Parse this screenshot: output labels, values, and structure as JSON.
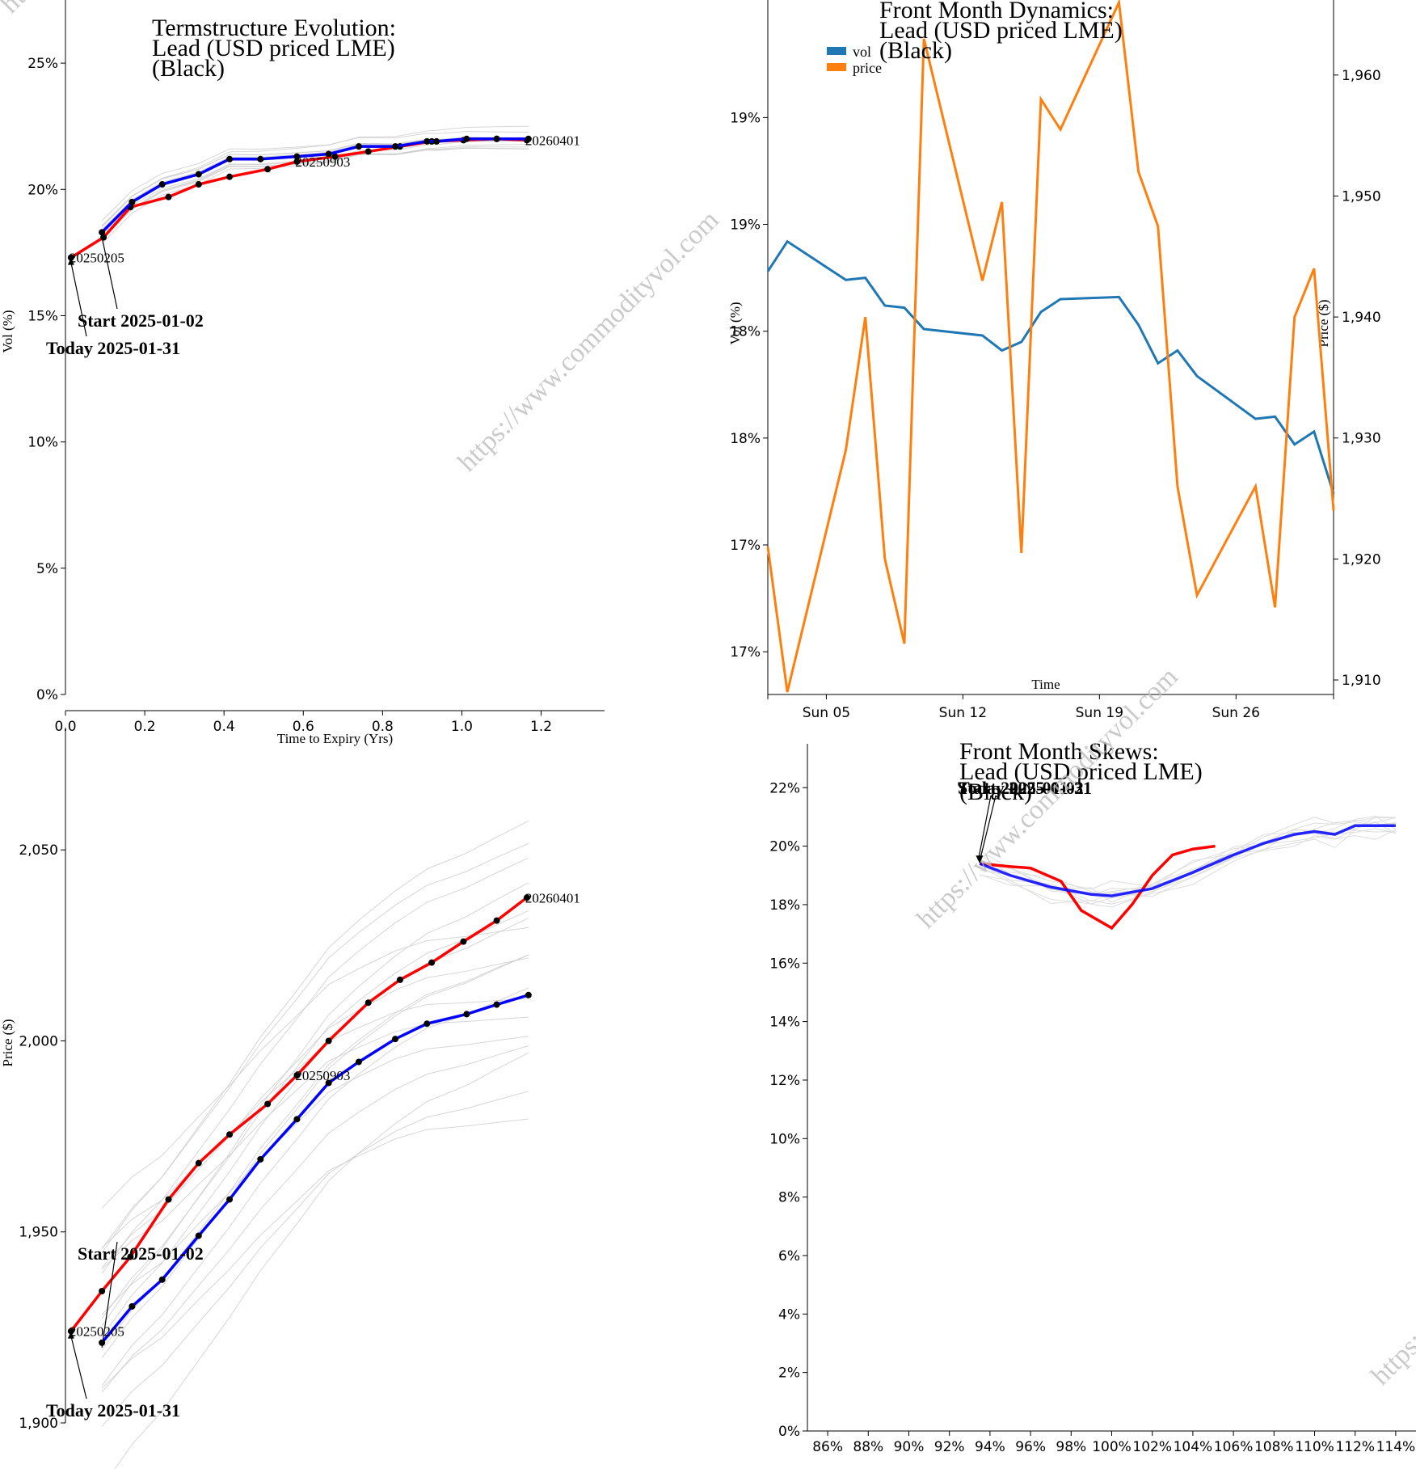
{
  "watermark": "https://www.commodityvol.com",
  "chart_data": [
    {
      "id": "termstructure-vol",
      "type": "line",
      "title": [
        "Termstructure Evolution:",
        "Lead (USD priced LME)",
        "(Black)"
      ],
      "xlabel": "Time to Expiry (Yrs)",
      "ylabel": "Vol (%)",
      "xlim": [
        0,
        1.36
      ],
      "ylim": [
        0,
        27.5
      ],
      "xticks": [
        0.0,
        0.2,
        0.4,
        0.6,
        0.8,
        1.0,
        1.2
      ],
      "xtick_labels": [
        "0.0",
        "0.2",
        "0.4",
        "0.6",
        "0.8",
        "1.0",
        "1.2"
      ],
      "yticks": [
        0,
        5,
        10,
        15,
        20,
        25
      ],
      "ytick_labels": [
        "0%",
        "5%",
        "10%",
        "15%",
        "20%",
        "25%"
      ],
      "series": [
        {
          "role": "today",
          "color": "#ff0000",
          "x": [
            0.014,
            0.096,
            0.164,
            0.26,
            0.336,
            0.414,
            0.51,
            0.584,
            0.68,
            0.764,
            0.844,
            0.924,
            1.004,
            1.088,
            1.164
          ],
          "y": [
            17.3,
            18.1,
            19.3,
            19.7,
            20.2,
            20.5,
            20.8,
            21.1,
            21.3,
            21.5,
            21.7,
            21.9,
            21.95,
            22.0,
            21.95
          ]
        },
        {
          "role": "start",
          "color": "#0000ff",
          "x": [
            0.092,
            0.168,
            0.244,
            0.336,
            0.414,
            0.492,
            0.584,
            0.664,
            0.74,
            0.832,
            0.912,
            0.936,
            1.012,
            1.088,
            1.168
          ],
          "y": [
            18.3,
            19.5,
            20.2,
            20.6,
            21.2,
            21.2,
            21.3,
            21.4,
            21.7,
            21.7,
            21.9,
            21.9,
            22.0,
            22.0,
            22.0
          ]
        }
      ],
      "annotations": [
        {
          "text": "Start 2025-01-02",
          "x": 0.092,
          "y": 18.3
        },
        {
          "text": "Today 2025-01-31",
          "x": 0.014,
          "y": 17.3
        }
      ],
      "point_labels": [
        {
          "text": "20250205",
          "x": 0.014,
          "y": 17.3
        },
        {
          "text": "20250903",
          "x": 0.584,
          "y": 21.1
        },
        {
          "text": "20260401",
          "x": 1.164,
          "y": 21.95
        }
      ]
    },
    {
      "id": "front-month-dynamics",
      "type": "line",
      "title": [
        "Front Month Dynamics:",
        "Lead (USD priced LME)",
        "(Black)"
      ],
      "xlabel": "Time",
      "ylabel": "Vol (%)",
      "y2label": "Price ($)",
      "legend": [
        "vol",
        "price"
      ],
      "legend_position": "top-left",
      "x_dates": [
        "2025-01-02",
        "2025-01-03",
        "2025-01-06",
        "2025-01-07",
        "2025-01-08",
        "2025-01-09",
        "2025-01-10",
        "2025-01-13",
        "2025-01-14",
        "2025-01-15",
        "2025-01-16",
        "2025-01-17",
        "2025-01-20",
        "2025-01-21",
        "2025-01-22",
        "2025-01-23",
        "2025-01-24",
        "2025-01-27",
        "2025-01-28",
        "2025-01-29",
        "2025-01-30",
        "2025-01-31"
      ],
      "xlim": [
        "2025-01-02",
        "2025-01-31"
      ],
      "xticks": [
        "2025-01-05",
        "2025-01-12",
        "2025-01-19",
        "2025-01-26"
      ],
      "xtick_labels": [
        "Sun 05",
        "Sun 12",
        "Sun 19",
        "Sun 26"
      ],
      "ylim": [
        16.7,
        19.95
      ],
      "yticks": [
        16.9,
        17.4,
        17.9,
        18.4,
        18.9,
        19.4
      ],
      "ytick_labels": [
        "17%",
        "17%",
        "18%",
        "18%",
        "19%",
        "19%"
      ],
      "y2lim": [
        1908.8,
        1966.2
      ],
      "y2ticks": [
        1910,
        1920,
        1930,
        1940,
        1950,
        1960
      ],
      "y2tick_labels": [
        "1,910",
        "1,920",
        "1,930",
        "1,940",
        "1,950",
        "1,960"
      ],
      "series": [
        {
          "name": "vol",
          "color": "#1f77b4",
          "axis": "left",
          "y": [
            18.68,
            18.82,
            18.64,
            18.65,
            18.52,
            18.51,
            18.41,
            18.38,
            18.31,
            18.35,
            18.49,
            18.55,
            18.56,
            18.43,
            18.25,
            18.31,
            18.19,
            17.99,
            18.0,
            17.87,
            17.93,
            17.64
          ]
        },
        {
          "name": "price",
          "color": "#ff7f0e",
          "axis": "left-secondary",
          "y": [
            1921.0,
            1909.0,
            1929.0,
            1940.0,
            1920.0,
            1913.0,
            1963.0,
            1943.0,
            1949.5,
            1920.5,
            1958.0,
            1955.5,
            1966.0,
            1952.0,
            1947.5,
            1926.0,
            1917.0,
            1926.0,
            1916.0,
            1940.0,
            1944.0,
            1924.0
          ]
        }
      ]
    },
    {
      "id": "termstructure-price",
      "type": "line",
      "title": [],
      "xlabel": "",
      "ylabel": "Price ($)",
      "xlim": [
        0,
        1.36
      ],
      "ylim": [
        1900,
        2082
      ],
      "yticks": [
        1900,
        1950,
        2000,
        2050
      ],
      "ytick_labels": [
        "1,900",
        "1,950",
        "2,000",
        "2,050"
      ],
      "series": [
        {
          "role": "today",
          "color": "#ff0000",
          "x": [
            0.014,
            0.092,
            0.164,
            0.26,
            0.336,
            0.414,
            0.51,
            0.584,
            0.664,
            0.764,
            0.844,
            0.924,
            1.004,
            1.088,
            1.164
          ],
          "y": [
            1924,
            1934.5,
            1943.5,
            1958.5,
            1968,
            1975.5,
            1983.5,
            1991,
            2000,
            2010,
            2016,
            2020.5,
            2026,
            2031.5,
            2037.5
          ]
        },
        {
          "role": "start",
          "color": "#0000ff",
          "x": [
            0.092,
            0.168,
            0.244,
            0.336,
            0.414,
            0.492,
            0.584,
            0.664,
            0.74,
            0.832,
            0.912,
            1.012,
            1.088,
            1.168
          ],
          "y": [
            1921,
            1930.5,
            1937.5,
            1949,
            1958.5,
            1969,
            1979.5,
            1989,
            1994.5,
            2000.5,
            2004.5,
            2007,
            2009.5,
            2012
          ]
        }
      ],
      "annotations": [
        {
          "text": "Start 2025-01-02",
          "x": 0.092,
          "y": 1921
        },
        {
          "text": "Today 2025-01-31",
          "x": 0.014,
          "y": 1924
        }
      ],
      "point_labels": [
        {
          "text": "20250205",
          "x": 0.014,
          "y": 1924
        },
        {
          "text": "20250903",
          "x": 0.584,
          "y": 1991
        },
        {
          "text": "20260401",
          "x": 1.164,
          "y": 2037.5
        }
      ]
    },
    {
      "id": "front-month-skews",
      "type": "line",
      "title": [
        "Front Month Skews:",
        "Lead (USD priced LME)",
        "(Black)"
      ],
      "xlabel": "",
      "ylabel": "",
      "xlim": [
        85.0,
        115.0
      ],
      "ylim": [
        0,
        23.5
      ],
      "xticks": [
        86,
        88,
        90,
        92,
        94,
        96,
        98,
        100,
        102,
        104,
        106,
        108,
        110,
        112,
        114
      ],
      "xtick_labels": [
        "86%",
        "88%",
        "90%",
        "92%",
        "94%",
        "96%",
        "98%",
        "100%",
        "102%",
        "104%",
        "106%",
        "108%",
        "110%",
        "112%",
        "114%"
      ],
      "yticks": [
        0,
        2,
        4,
        6,
        8,
        10,
        12,
        14,
        16,
        18,
        20,
        22
      ],
      "ytick_labels": [
        "0%",
        "2%",
        "4%",
        "6%",
        "8%",
        "10%",
        "12%",
        "14%",
        "16%",
        "18%",
        "20%",
        "22%"
      ],
      "series": [
        {
          "role": "today",
          "color": "#ff0000",
          "x": [
            93.5,
            95.0,
            96.0,
            97.5,
            98.5,
            100.0,
            101.0,
            102.0,
            103.0,
            104.0,
            105.1
          ],
          "y": [
            19.4,
            19.3,
            19.25,
            18.8,
            17.8,
            17.2,
            18.0,
            19.0,
            19.7,
            19.9,
            20.0
          ]
        },
        {
          "role": "start",
          "color": "#0000ff",
          "x": [
            93.5,
            95.0,
            97.0,
            99.0,
            100.0,
            102.0,
            104.0,
            106.0,
            107.5,
            109.0,
            110.0,
            111.0,
            112.0,
            113.0,
            114.0
          ],
          "y": [
            19.4,
            19.0,
            18.6,
            18.35,
            18.3,
            18.55,
            19.1,
            19.7,
            20.1,
            20.4,
            20.5,
            20.4,
            20.7,
            20.7,
            20.7
          ]
        }
      ],
      "annotations": [
        {
          "text": "Start 2025-01-02",
          "x": 93.5,
          "y": 19.4
        },
        {
          "text": "Today 2025-01-31",
          "x": 93.5,
          "y": 19.4
        }
      ]
    }
  ]
}
